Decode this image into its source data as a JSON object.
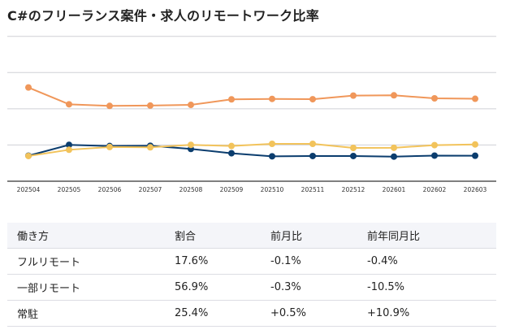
{
  "title": "C#のフリーランス案件・求人のリモートワーク比率",
  "chart_data": {
    "type": "line",
    "title": "C#のフリーランス案件・求人のリモートワーク比率",
    "categories": [
      "202504",
      "202505",
      "202506",
      "202507",
      "202508",
      "202509",
      "202510",
      "202511",
      "202512",
      "202601",
      "202602",
      "202603"
    ],
    "ylim": [
      0,
      100
    ],
    "yticks": [
      0,
      25,
      50,
      75,
      100
    ],
    "ytick_labels_shown": false,
    "grid": true,
    "legend": "none",
    "series": [
      {
        "key": "partial",
        "color": "#f0975a",
        "values": [
          64.7,
          53.1,
          52.0,
          52.2,
          52.7,
          56.5,
          56.8,
          56.6,
          59.1,
          59.3,
          57.2,
          56.9
        ]
      },
      {
        "key": "full",
        "color": "#0b3d6e",
        "values": [
          17.6,
          25.1,
          24.3,
          24.5,
          22.3,
          19.3,
          17.2,
          17.4,
          17.4,
          17.0,
          17.7,
          17.6
        ]
      },
      {
        "key": "onsite",
        "color": "#f2c35b",
        "values": [
          17.4,
          21.7,
          23.6,
          23.4,
          25.1,
          24.3,
          25.8,
          25.8,
          23.0,
          23.1,
          24.9,
          25.4
        ]
      }
    ]
  },
  "table": {
    "headers": [
      "働き方",
      "割合",
      "前月比",
      "前年同月比"
    ],
    "rows": [
      [
        "フルリモート",
        "17.6%",
        "-0.1%",
        "-0.4%"
      ],
      [
        "一部リモート",
        "56.9%",
        "-0.3%",
        "-10.5%"
      ],
      [
        "常駐",
        "25.4%",
        "+0.5%",
        "+10.9%"
      ]
    ]
  }
}
